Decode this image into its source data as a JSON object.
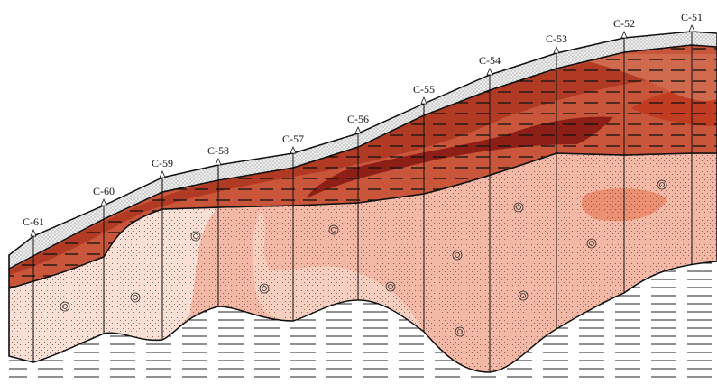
{
  "boreholes": [
    {
      "label": "C-61"
    },
    {
      "label": "C-60"
    },
    {
      "label": "C-59"
    },
    {
      "label": "C-58"
    },
    {
      "label": "C-57"
    },
    {
      "label": "C-56"
    },
    {
      "label": "C-55"
    },
    {
      "label": "C-54"
    },
    {
      "label": "C-53"
    },
    {
      "label": "C-52"
    },
    {
      "label": "C-51"
    }
  ]
}
